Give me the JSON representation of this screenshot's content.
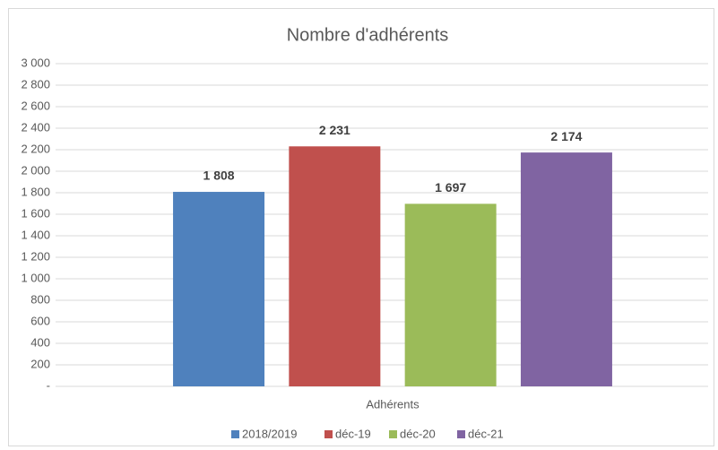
{
  "chart_data": {
    "type": "bar",
    "title": "Nombre d'adhérents",
    "categories": [
      "Adhérents"
    ],
    "series": [
      {
        "name": "2018/2019",
        "color": "#4f81bd",
        "values": [
          1808
        ],
        "value_labels": [
          "1 808"
        ]
      },
      {
        "name": "déc-19",
        "color": "#c0504d",
        "values": [
          2231
        ],
        "value_labels": [
          "2 231"
        ]
      },
      {
        "name": "déc-20",
        "color": "#9bbb59",
        "values": [
          1697
        ],
        "value_labels": [
          "1 697"
        ]
      },
      {
        "name": "déc-21",
        "color": "#8064a2",
        "values": [
          2174
        ],
        "value_labels": [
          "2 174"
        ]
      }
    ],
    "ylim": [
      0,
      3000
    ],
    "yticks": [
      {
        "value": 0,
        "label": "-"
      },
      200,
      400,
      600,
      800,
      {
        "value": 1000,
        "label": "1 000"
      },
      {
        "value": 1200,
        "label": "1 200"
      },
      {
        "value": 1400,
        "label": "1 400"
      },
      {
        "value": 1600,
        "label": "1 600"
      },
      {
        "value": 1800,
        "label": "1 800"
      },
      {
        "value": 2000,
        "label": "2 000"
      },
      {
        "value": 2200,
        "label": "2 200"
      },
      {
        "value": 2400,
        "label": "2 400"
      },
      {
        "value": 2600,
        "label": "2 600"
      },
      {
        "value": 2800,
        "label": "2 800"
      },
      {
        "value": 3000,
        "label": "3 000"
      }
    ],
    "grid": true,
    "legend": "bottom"
  }
}
